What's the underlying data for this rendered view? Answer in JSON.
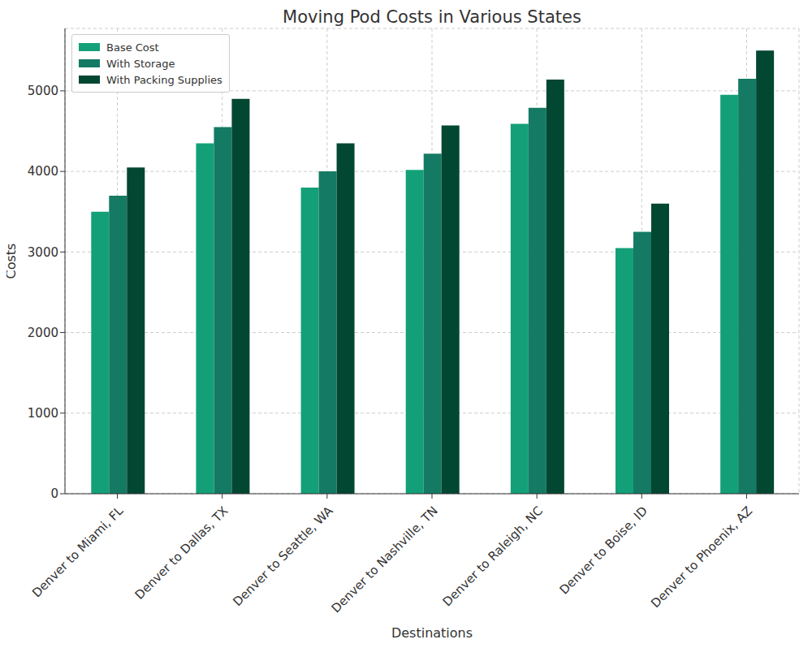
{
  "chart_data": {
    "type": "bar",
    "title": "Moving Pod Costs in Various States",
    "x_label": "Destinations",
    "y_label": "Costs",
    "categories": [
      "Denver to Miami, FL",
      "Denver to Dallas, TX",
      "Denver to Seattle, WA",
      "Denver to Nashville, TN",
      "Denver to Raleigh, NC",
      "Denver to Boise, ID",
      "Denver to Phoenix, AZ"
    ],
    "series": [
      {
        "name": "Base Cost",
        "color": "#13a078",
        "values": [
          3500,
          4350,
          3800,
          4020,
          4590,
          3050,
          4950
        ]
      },
      {
        "name": "With Storage",
        "color": "#157a64",
        "values": [
          3700,
          4550,
          4000,
          4220,
          4790,
          3250,
          5150
        ]
      },
      {
        "name": "With Packing Supplies",
        "color": "#024732",
        "values": [
          4050,
          4900,
          4350,
          4570,
          5140,
          3600,
          5500
        ]
      }
    ],
    "ylim": [
      0,
      5775
    ],
    "yticks": [
      0,
      1000,
      2000,
      3000,
      4000,
      5000
    ],
    "grid": true,
    "legend": "upper left"
  }
}
